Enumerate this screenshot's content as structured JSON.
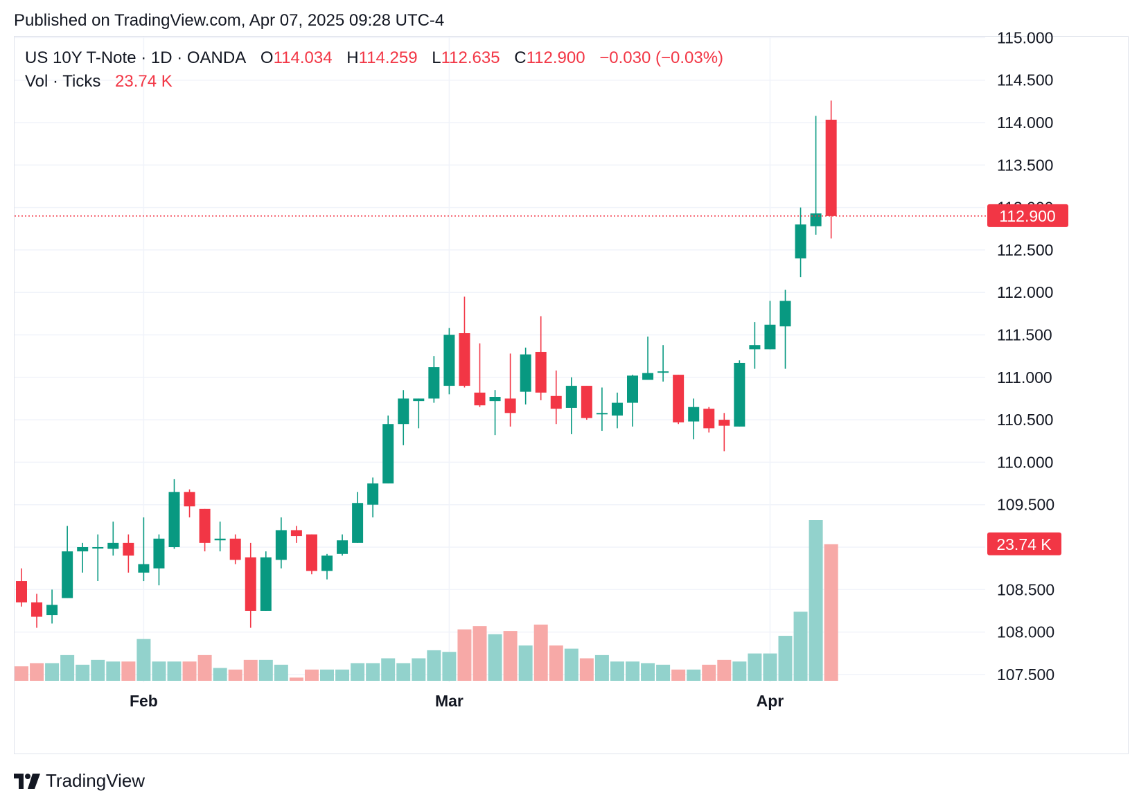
{
  "header": {
    "published": "Published on TradingView.com, Apr 07, 2025 09:28 UTC-4"
  },
  "legend": {
    "symbol": "US 10Y T-Note · 1D · OANDA",
    "o_label": "O",
    "o_value": "114.034",
    "h_label": "H",
    "h_value": "114.259",
    "l_label": "L",
    "l_value": "112.635",
    "c_label": "C",
    "c_value": "112.900",
    "change": "−0.030 (−0.03%)",
    "vol_label": "Vol · Ticks",
    "vol_value": "23.74 K"
  },
  "footer": {
    "brand": "TradingView"
  },
  "colors": {
    "up": "#089981",
    "down": "#f23645",
    "vol_up": "#92d2cc",
    "vol_down": "#f7a9a7",
    "grid": "#f0f3fa"
  },
  "chart_data": {
    "type": "candlestick",
    "y_axis_ticks": [
      "107.500",
      "108.000",
      "108.500",
      "109.000",
      "109.500",
      "110.000",
      "110.500",
      "111.000",
      "111.500",
      "112.000",
      "112.500",
      "113.000",
      "113.500",
      "114.000",
      "114.500",
      "115.000"
    ],
    "ylim": [
      107.35,
      115.05
    ],
    "x_axis_labels": [
      {
        "label": "Feb",
        "index": 8
      },
      {
        "label": "Mar",
        "index": 28
      },
      {
        "label": "Apr",
        "index": 49
      }
    ],
    "last_price_label": "112.900",
    "last_volume_label": "23.74 K",
    "candles": [
      [
        108.6,
        108.35,
        108.75,
        108.3
      ],
      [
        108.35,
        108.18,
        108.45,
        108.05
      ],
      [
        108.2,
        108.32,
        108.5,
        108.1
      ],
      [
        108.4,
        108.95,
        109.25,
        108.4
      ],
      [
        108.95,
        109.0,
        109.05,
        108.7
      ],
      [
        109.0,
        109.0,
        109.15,
        108.6
      ],
      [
        108.98,
        109.05,
        109.3,
        108.9
      ],
      [
        109.05,
        108.9,
        109.15,
        108.7
      ],
      [
        108.7,
        108.8,
        109.35,
        108.6
      ],
      [
        108.75,
        109.1,
        109.15,
        108.55
      ],
      [
        109.0,
        109.65,
        109.8,
        108.98
      ],
      [
        109.65,
        109.48,
        109.68,
        109.35
      ],
      [
        109.45,
        109.05,
        109.45,
        108.95
      ],
      [
        109.08,
        109.1,
        109.3,
        108.95
      ],
      [
        109.1,
        108.85,
        109.15,
        108.8
      ],
      [
        108.88,
        108.25,
        109.05,
        108.05
      ],
      [
        108.25,
        108.88,
        108.95,
        108.25
      ],
      [
        108.85,
        109.2,
        109.35,
        108.75
      ],
      [
        109.2,
        109.13,
        109.25,
        109.05
      ],
      [
        109.15,
        108.72,
        109.15,
        108.68
      ],
      [
        108.72,
        108.9,
        108.92,
        108.62
      ],
      [
        108.92,
        109.08,
        109.15,
        108.9
      ],
      [
        109.05,
        109.52,
        109.65,
        109.05
      ],
      [
        109.5,
        109.75,
        109.82,
        109.35
      ],
      [
        109.75,
        110.45,
        110.55,
        109.75
      ],
      [
        110.45,
        110.75,
        110.85,
        110.2
      ],
      [
        110.72,
        110.75,
        110.75,
        110.4
      ],
      [
        110.75,
        111.12,
        111.25,
        110.7
      ],
      [
        110.9,
        111.5,
        111.58,
        110.8
      ],
      [
        111.52,
        110.9,
        111.95,
        110.88
      ],
      [
        110.82,
        110.67,
        111.4,
        110.65
      ],
      [
        110.72,
        110.77,
        110.85,
        110.32
      ],
      [
        110.75,
        110.58,
        111.28,
        110.42
      ],
      [
        110.83,
        111.27,
        111.35,
        110.68
      ],
      [
        111.3,
        110.82,
        111.72,
        110.73
      ],
      [
        110.78,
        110.63,
        111.08,
        110.45
      ],
      [
        110.64,
        110.9,
        111.0,
        110.33
      ],
      [
        110.9,
        110.52,
        110.9,
        110.5
      ],
      [
        110.58,
        110.58,
        110.88,
        110.37
      ],
      [
        110.55,
        110.7,
        110.82,
        110.4
      ],
      [
        110.7,
        111.02,
        111.03,
        110.42
      ],
      [
        110.97,
        111.05,
        111.48,
        110.97
      ],
      [
        111.07,
        111.07,
        111.38,
        110.95
      ],
      [
        111.03,
        110.47,
        111.03,
        110.45
      ],
      [
        110.48,
        110.65,
        110.75,
        110.27
      ],
      [
        110.63,
        110.4,
        110.65,
        110.35
      ],
      [
        110.5,
        110.43,
        110.58,
        110.13
      ],
      [
        110.42,
        111.17,
        111.2,
        110.42
      ],
      [
        111.33,
        111.38,
        111.65,
        111.1
      ],
      [
        111.33,
        111.62,
        111.9,
        111.33
      ],
      [
        111.6,
        111.9,
        112.03,
        111.1
      ],
      [
        112.4,
        112.8,
        113.0,
        112.18
      ],
      [
        112.78,
        112.93,
        114.08,
        112.68
      ],
      [
        114.034,
        112.9,
        114.259,
        112.635
      ]
    ],
    "volume_levels": [
      0.09,
      0.11,
      0.11,
      0.16,
      0.1,
      0.13,
      0.12,
      0.12,
      0.26,
      0.12,
      0.12,
      0.12,
      0.16,
      0.08,
      0.07,
      0.13,
      0.13,
      0.1,
      0.02,
      0.07,
      0.07,
      0.07,
      0.11,
      0.11,
      0.14,
      0.11,
      0.14,
      0.19,
      0.18,
      0.32,
      0.34,
      0.29,
      0.31,
      0.22,
      0.35,
      0.22,
      0.2,
      0.14,
      0.16,
      0.12,
      0.12,
      0.11,
      0.1,
      0.07,
      0.07,
      0.1,
      0.13,
      0.12,
      0.17,
      0.17,
      0.28,
      0.43,
      1.0,
      0.85
    ]
  }
}
